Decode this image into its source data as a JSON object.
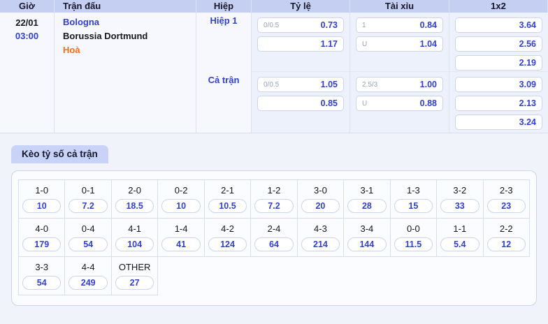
{
  "colors": {
    "header_bg": "#c5cff2",
    "odds_blue": "#3140d2",
    "draw_orange": "#fb6c13",
    "tab_bg": "#c9d3f7",
    "page_bg": "#f0f3fa"
  },
  "odds_table": {
    "headers": {
      "time": "Giờ",
      "match": "Trận đấu",
      "half": "Hiệp",
      "rate": "Tỷ lệ",
      "over_under": "Tài xỉu",
      "one_x_two": "1x2"
    },
    "match": {
      "date": "22/01",
      "time": "03:00",
      "home": "Bologna",
      "away": "Borussia Dortmund",
      "draw": "Hoà"
    },
    "sections": [
      {
        "label": "Hiệp 1",
        "rate": [
          {
            "label": "0/0.5",
            "value": "0.73"
          },
          {
            "label": "",
            "value": "1.17"
          }
        ],
        "over_under": [
          {
            "label": "1",
            "value": "0.84"
          },
          {
            "label": "U",
            "value": "1.04"
          }
        ],
        "one_x_two": [
          "3.64",
          "2.56",
          "2.19"
        ]
      },
      {
        "label": "Cả trận",
        "rate": [
          {
            "label": "0/0.5",
            "value": "1.05"
          },
          {
            "label": "",
            "value": "0.85"
          }
        ],
        "over_under": [
          {
            "label": "2.5/3",
            "value": "1.00"
          },
          {
            "label": "U",
            "value": "0.88"
          }
        ],
        "one_x_two": [
          "3.09",
          "2.13",
          "3.24"
        ]
      }
    ]
  },
  "score_tab": {
    "label": "Kèo tỷ số cả trận"
  },
  "score_grid": {
    "rows": [
      {
        "cells": [
          {
            "score": "1-0",
            "odds": "10"
          },
          {
            "score": "0-1",
            "odds": "7.2"
          },
          {
            "score": "2-0",
            "odds": "18.5"
          },
          {
            "score": "0-2",
            "odds": "10"
          },
          {
            "score": "2-1",
            "odds": "10.5"
          },
          {
            "score": "1-2",
            "odds": "7.2"
          },
          {
            "score": "3-0",
            "odds": "20"
          },
          {
            "score": "3-1",
            "odds": "28"
          },
          {
            "score": "1-3",
            "odds": "15"
          },
          {
            "score": "3-2",
            "odds": "33"
          },
          {
            "score": "2-3",
            "odds": "23"
          }
        ]
      },
      {
        "cells": [
          {
            "score": "4-0",
            "odds": "179"
          },
          {
            "score": "0-4",
            "odds": "54"
          },
          {
            "score": "4-1",
            "odds": "104"
          },
          {
            "score": "1-4",
            "odds": "41"
          },
          {
            "score": "4-2",
            "odds": "124"
          },
          {
            "score": "2-4",
            "odds": "64"
          },
          {
            "score": "4-3",
            "odds": "214"
          },
          {
            "score": "3-4",
            "odds": "144"
          },
          {
            "score": "0-0",
            "odds": "11.5"
          },
          {
            "score": "1-1",
            "odds": "5.4"
          },
          {
            "score": "2-2",
            "odds": "12"
          }
        ]
      },
      {
        "cells": [
          {
            "score": "3-3",
            "odds": "54"
          },
          {
            "score": "4-4",
            "odds": "249"
          },
          {
            "score": "OTHER",
            "odds": "27"
          }
        ]
      }
    ]
  }
}
